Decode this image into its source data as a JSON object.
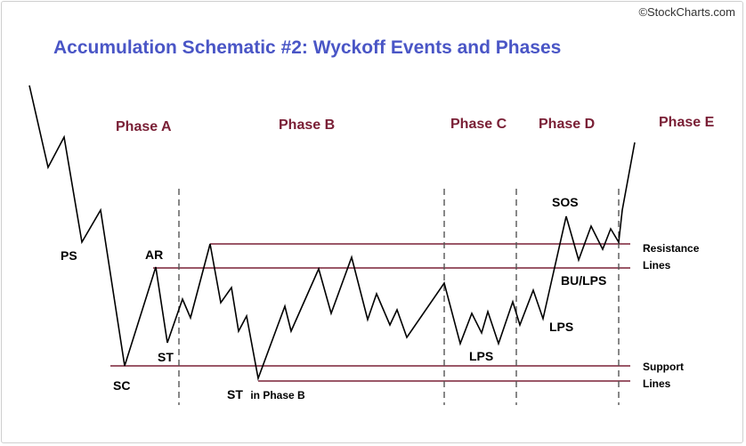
{
  "title": "Accumulation Schematic #2: Wyckoff Events and Phases",
  "credit": "©StockCharts.com",
  "phases": [
    "Phase A",
    "Phase B",
    "Phase C",
    "Phase D",
    "Phase E"
  ],
  "events": {
    "ps": "PS",
    "sc": "SC",
    "ar": "AR",
    "st": "ST",
    "st_phase_b": "ST",
    "st_phase_b_suffix": "in Phase B",
    "lps_c": "LPS",
    "lps_d": "LPS",
    "sos": "SOS",
    "bu_lps": "BU/LPS"
  },
  "line_labels": {
    "resistance_1": "Resistance",
    "resistance_2": "Lines",
    "support_1": "Support",
    "support_2": "Lines"
  },
  "colors": {
    "title": "#4a56c6",
    "phase_label": "#7a2036",
    "level_line": "#7a2036",
    "price_line": "#000000"
  }
}
